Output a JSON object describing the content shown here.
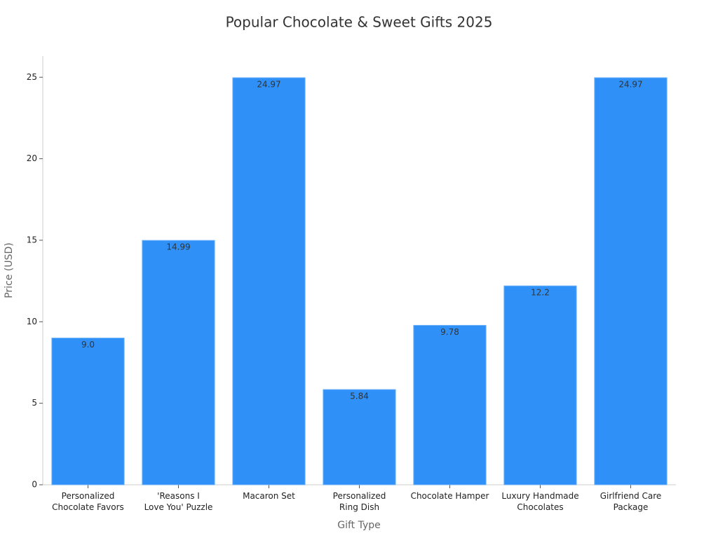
{
  "chart_data": {
    "type": "bar",
    "title": "Popular Chocolate & Sweet Gifts 2025",
    "x_label": "Gift Type",
    "y_label": "Price (USD)",
    "categories": [
      "Personalized\nChocolate Favors",
      "'Reasons I\nLove You' Puzzle",
      "Macaron Set",
      "Personalized\nRing Dish",
      "Chocolate Hamper",
      "Luxury Handmade\nChocolates",
      "Girlfriend Care\nPackage"
    ],
    "values": [
      9.0,
      14.99,
      24.97,
      5.84,
      9.78,
      12.2,
      24.97
    ],
    "value_labels": [
      "9.0",
      "14.99",
      "24.97",
      "5.84",
      "9.78",
      "12.2",
      "24.97"
    ],
    "color": "#2f91f8",
    "ylim": [
      0,
      26.3
    ],
    "yticks": [
      0,
      5,
      10,
      15,
      20,
      25
    ]
  }
}
